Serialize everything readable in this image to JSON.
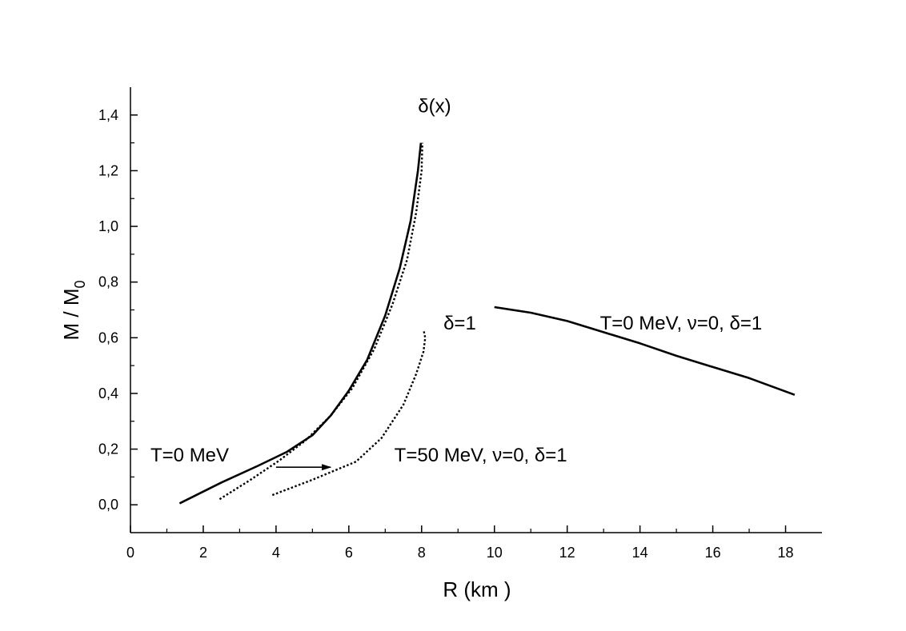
{
  "chart_data": {
    "type": "line",
    "title": "",
    "xlabel": "R (km )",
    "ylabel_main": "M / M",
    "ylabel_sub": "0",
    "xlim": [
      0,
      19
    ],
    "ylim": [
      -0.1,
      1.5
    ],
    "xticks": [
      0,
      2,
      4,
      6,
      8,
      10,
      12,
      14,
      16,
      18
    ],
    "xtick_labels": [
      "0",
      "2",
      "4",
      "6",
      "8",
      "10",
      "12",
      "14",
      "16",
      "18"
    ],
    "yticks": [
      0.0,
      0.2,
      0.4,
      0.6,
      0.8,
      1.0,
      1.2,
      1.4
    ],
    "ytick_labels": [
      "0,0",
      "0,2",
      "0,4",
      "0,6",
      "0,8",
      "1,0",
      "1,2",
      "1,4"
    ],
    "grid": false,
    "series": [
      {
        "style": "solid",
        "x": [
          1.35,
          2.5,
          3.5,
          4.3,
          5.0,
          5.5,
          6.0,
          6.5,
          7.0,
          7.4,
          7.7,
          7.9,
          7.98
        ],
        "y": [
          0.005,
          0.08,
          0.14,
          0.19,
          0.25,
          0.32,
          0.41,
          0.52,
          0.68,
          0.85,
          1.02,
          1.2,
          1.3
        ]
      },
      {
        "style": "dotted",
        "x": [
          2.45,
          3.3,
          4.1,
          4.8,
          5.5,
          6.1,
          6.7,
          7.2,
          7.6,
          7.85,
          8.0,
          8.02
        ],
        "y": [
          0.02,
          0.09,
          0.16,
          0.23,
          0.32,
          0.42,
          0.56,
          0.72,
          0.88,
          1.05,
          1.2,
          1.3
        ]
      },
      {
        "style": "dotted",
        "x": [
          3.9,
          5.0,
          6.2,
          6.9,
          7.5,
          7.85,
          8.05,
          8.1,
          8.05
        ],
        "y": [
          0.035,
          0.09,
          0.155,
          0.24,
          0.36,
          0.47,
          0.55,
          0.6,
          0.63
        ]
      },
      {
        "style": "solid",
        "x": [
          10.0,
          11.0,
          12.0,
          13.0,
          14.0,
          15.0,
          16.0,
          17.0,
          18.25
        ],
        "y": [
          0.71,
          0.69,
          0.66,
          0.62,
          0.58,
          0.535,
          0.495,
          0.455,
          0.395
        ]
      }
    ],
    "annotations": [
      {
        "text": "δ(x)",
        "x": 7.9,
        "y": 1.41
      },
      {
        "text": "δ=1",
        "x": 8.6,
        "y": 0.63
      },
      {
        "text": "T=0 MeV, ν=0, δ=1",
        "x": 12.9,
        "y": 0.63
      },
      {
        "text": "T=0 MeV",
        "x": 0.55,
        "y": 0.155
      },
      {
        "text": "T=50 MeV, ν=0, δ=1",
        "x": 7.25,
        "y": 0.155
      }
    ],
    "arrow": {
      "from": [
        4.0,
        0.135
      ],
      "to": [
        5.5,
        0.135
      ]
    }
  }
}
